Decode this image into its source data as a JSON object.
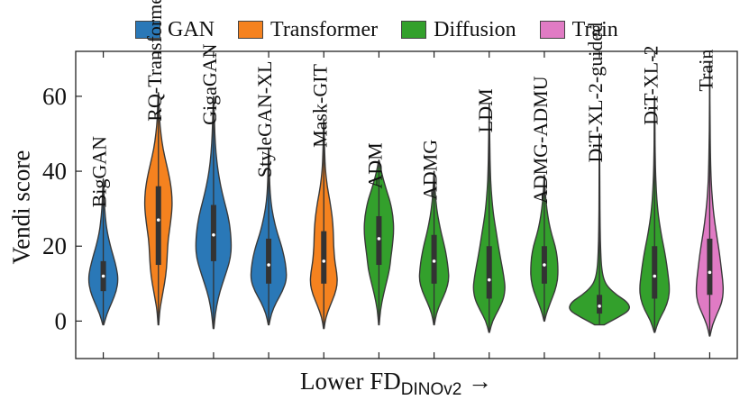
{
  "chart_data": {
    "type": "violin",
    "title": "",
    "xlabel": "Lower FD",
    "xlabel_sub": "DINOv2",
    "xlabel_arrow": "→",
    "ylabel": "Vendi score",
    "ylim": [
      -10,
      72
    ],
    "yticks": [
      0,
      20,
      40,
      60
    ],
    "grid": false,
    "legend_position": "top",
    "legend": [
      {
        "name": "GAN",
        "color": "#2a78b7"
      },
      {
        "name": "Transformer",
        "color": "#f5821f"
      },
      {
        "name": "Diffusion",
        "color": "#33a02c"
      },
      {
        "name": "Train",
        "color": "#e07bc4"
      }
    ],
    "violins": [
      {
        "label": "BigGAN",
        "family": "GAN",
        "min": -1,
        "max": 38,
        "q1": 8,
        "median": 12,
        "q3": 16,
        "width": 0.6,
        "profile": [
          [
            -1,
            0.03
          ],
          [
            2,
            0.25
          ],
          [
            5,
            0.58
          ],
          [
            8,
            0.88
          ],
          [
            11,
            1.0
          ],
          [
            14,
            0.9
          ],
          [
            17,
            0.7
          ],
          [
            20,
            0.48
          ],
          [
            24,
            0.25
          ],
          [
            28,
            0.13
          ],
          [
            32,
            0.06
          ],
          [
            36,
            0.03
          ],
          [
            38,
            0.01
          ]
        ]
      },
      {
        "label": "RQ-Transformer",
        "family": "Transformer",
        "min": -1,
        "max": 61,
        "q1": 15,
        "median": 27,
        "q3": 36,
        "width": 0.55,
        "profile": [
          [
            -1,
            0.02
          ],
          [
            3,
            0.1
          ],
          [
            6,
            0.25
          ],
          [
            10,
            0.45
          ],
          [
            14,
            0.6
          ],
          [
            18,
            0.65
          ],
          [
            22,
            0.72
          ],
          [
            26,
            0.88
          ],
          [
            30,
            1.0
          ],
          [
            33,
            1.0
          ],
          [
            36,
            0.92
          ],
          [
            40,
            0.72
          ],
          [
            44,
            0.45
          ],
          [
            48,
            0.25
          ],
          [
            52,
            0.12
          ],
          [
            56,
            0.06
          ],
          [
            61,
            0.02
          ]
        ]
      },
      {
        "label": "GigaGAN",
        "family": "GAN",
        "min": -2,
        "max": 60,
        "q1": 16,
        "median": 23,
        "q3": 31,
        "width": 0.72,
        "profile": [
          [
            -2,
            0.02
          ],
          [
            2,
            0.1
          ],
          [
            6,
            0.25
          ],
          [
            10,
            0.5
          ],
          [
            14,
            0.78
          ],
          [
            17,
            0.95
          ],
          [
            20,
            1.0
          ],
          [
            24,
            0.95
          ],
          [
            28,
            0.82
          ],
          [
            32,
            0.6
          ],
          [
            36,
            0.4
          ],
          [
            40,
            0.25
          ],
          [
            45,
            0.13
          ],
          [
            50,
            0.07
          ],
          [
            55,
            0.04
          ],
          [
            60,
            0.01
          ]
        ]
      },
      {
        "label": "StyleGAN-XL",
        "family": "GAN",
        "min": -1,
        "max": 46,
        "q1": 10,
        "median": 15,
        "q3": 22,
        "width": 0.72,
        "profile": [
          [
            -1,
            0.02
          ],
          [
            2,
            0.15
          ],
          [
            5,
            0.42
          ],
          [
            8,
            0.78
          ],
          [
            11,
            1.0
          ],
          [
            14,
            0.98
          ],
          [
            17,
            0.88
          ],
          [
            20,
            0.72
          ],
          [
            24,
            0.45
          ],
          [
            28,
            0.25
          ],
          [
            32,
            0.12
          ],
          [
            36,
            0.06
          ],
          [
            41,
            0.03
          ],
          [
            46,
            0.01
          ]
        ]
      },
      {
        "label": "Mask-GIT",
        "family": "Transformer",
        "min": -2,
        "max": 54,
        "q1": 10,
        "median": 16,
        "q3": 24,
        "width": 0.55,
        "profile": [
          [
            -2,
            0.02
          ],
          [
            1,
            0.15
          ],
          [
            4,
            0.45
          ],
          [
            7,
            0.8
          ],
          [
            10,
            1.0
          ],
          [
            13,
            0.95
          ],
          [
            16,
            0.8
          ],
          [
            20,
            0.72
          ],
          [
            24,
            0.7
          ],
          [
            28,
            0.62
          ],
          [
            32,
            0.45
          ],
          [
            36,
            0.25
          ],
          [
            40,
            0.12
          ],
          [
            45,
            0.06
          ],
          [
            50,
            0.03
          ],
          [
            54,
            0.01
          ]
        ]
      },
      {
        "label": "ADM",
        "family": "Diffusion",
        "min": -1,
        "max": 43,
        "q1": 15,
        "median": 22,
        "q3": 28,
        "width": 0.6,
        "profile": [
          [
            -1,
            0.02
          ],
          [
            3,
            0.1
          ],
          [
            7,
            0.3
          ],
          [
            11,
            0.55
          ],
          [
            14,
            0.72
          ],
          [
            17,
            0.8
          ],
          [
            20,
            0.9
          ],
          [
            24,
            1.0
          ],
          [
            28,
            0.95
          ],
          [
            32,
            0.75
          ],
          [
            35,
            0.5
          ],
          [
            38,
            0.28
          ],
          [
            41,
            0.1
          ],
          [
            43,
            0.02
          ]
        ]
      },
      {
        "label": "ADMG",
        "family": "Diffusion",
        "min": -1,
        "max": 40,
        "q1": 10,
        "median": 16,
        "q3": 23,
        "width": 0.6,
        "profile": [
          [
            -1,
            0.02
          ],
          [
            2,
            0.15
          ],
          [
            5,
            0.45
          ],
          [
            8,
            0.8
          ],
          [
            11,
            1.0
          ],
          [
            14,
            0.95
          ],
          [
            17,
            0.85
          ],
          [
            20,
            0.7
          ],
          [
            24,
            0.45
          ],
          [
            28,
            0.25
          ],
          [
            32,
            0.12
          ],
          [
            36,
            0.05
          ],
          [
            40,
            0.01
          ]
        ]
      },
      {
        "label": "LDM",
        "family": "Diffusion",
        "min": -3,
        "max": 58,
        "q1": 6,
        "median": 11,
        "q3": 20,
        "width": 0.65,
        "profile": [
          [
            -3,
            0.02
          ],
          [
            0,
            0.2
          ],
          [
            3,
            0.58
          ],
          [
            6,
            0.9
          ],
          [
            9,
            1.0
          ],
          [
            12,
            0.9
          ],
          [
            15,
            0.78
          ],
          [
            18,
            0.65
          ],
          [
            22,
            0.5
          ],
          [
            26,
            0.35
          ],
          [
            30,
            0.22
          ],
          [
            35,
            0.12
          ],
          [
            40,
            0.07
          ],
          [
            46,
            0.04
          ],
          [
            52,
            0.02
          ],
          [
            58,
            0.01
          ]
        ]
      },
      {
        "label": "ADMG-ADMU",
        "family": "Diffusion",
        "min": 0,
        "max": 39,
        "q1": 10,
        "median": 15,
        "q3": 20,
        "width": 0.55,
        "profile": [
          [
            0,
            0.02
          ],
          [
            2,
            0.15
          ],
          [
            5,
            0.45
          ],
          [
            8,
            0.78
          ],
          [
            11,
            0.98
          ],
          [
            14,
            1.0
          ],
          [
            17,
            0.95
          ],
          [
            20,
            0.8
          ],
          [
            23,
            0.55
          ],
          [
            26,
            0.35
          ],
          [
            30,
            0.18
          ],
          [
            34,
            0.07
          ],
          [
            39,
            0.01
          ]
        ]
      },
      {
        "label": "DiT-XL-2-guided",
        "family": "Diffusion",
        "min": -1,
        "max": 50,
        "q1": 2,
        "median": 4,
        "q3": 7,
        "width": 1.25,
        "profile": [
          [
            -1,
            0.15
          ],
          [
            1,
            0.6
          ],
          [
            3,
            1.0
          ],
          [
            5,
            0.92
          ],
          [
            7,
            0.55
          ],
          [
            9,
            0.28
          ],
          [
            11,
            0.14
          ],
          [
            14,
            0.07
          ],
          [
            18,
            0.04
          ],
          [
            25,
            0.02
          ],
          [
            35,
            0.01
          ],
          [
            50,
            0.005
          ]
        ]
      },
      {
        "label": "DiT-XL-2",
        "family": "Diffusion",
        "min": -3,
        "max": 60,
        "q1": 6,
        "median": 12,
        "q3": 20,
        "width": 0.6,
        "profile": [
          [
            -3,
            0.02
          ],
          [
            0,
            0.25
          ],
          [
            3,
            0.68
          ],
          [
            6,
            0.95
          ],
          [
            9,
            1.0
          ],
          [
            12,
            0.92
          ],
          [
            15,
            0.82
          ],
          [
            18,
            0.7
          ],
          [
            22,
            0.5
          ],
          [
            26,
            0.33
          ],
          [
            30,
            0.2
          ],
          [
            35,
            0.11
          ],
          [
            40,
            0.06
          ],
          [
            47,
            0.03
          ],
          [
            53,
            0.02
          ],
          [
            60,
            0.01
          ]
        ]
      },
      {
        "label": "Train",
        "family": "Train",
        "min": -4,
        "max": 69,
        "q1": 7,
        "median": 13,
        "q3": 22,
        "width": 0.55,
        "profile": [
          [
            -4,
            0.02
          ],
          [
            -1,
            0.2
          ],
          [
            2,
            0.55
          ],
          [
            5,
            0.9
          ],
          [
            8,
            1.0
          ],
          [
            11,
            0.95
          ],
          [
            14,
            0.85
          ],
          [
            18,
            0.72
          ],
          [
            22,
            0.55
          ],
          [
            26,
            0.38
          ],
          [
            30,
            0.25
          ],
          [
            35,
            0.14
          ],
          [
            40,
            0.08
          ],
          [
            47,
            0.04
          ],
          [
            55,
            0.02
          ],
          [
            62,
            0.01
          ],
          [
            69,
            0.005
          ]
        ]
      }
    ]
  }
}
